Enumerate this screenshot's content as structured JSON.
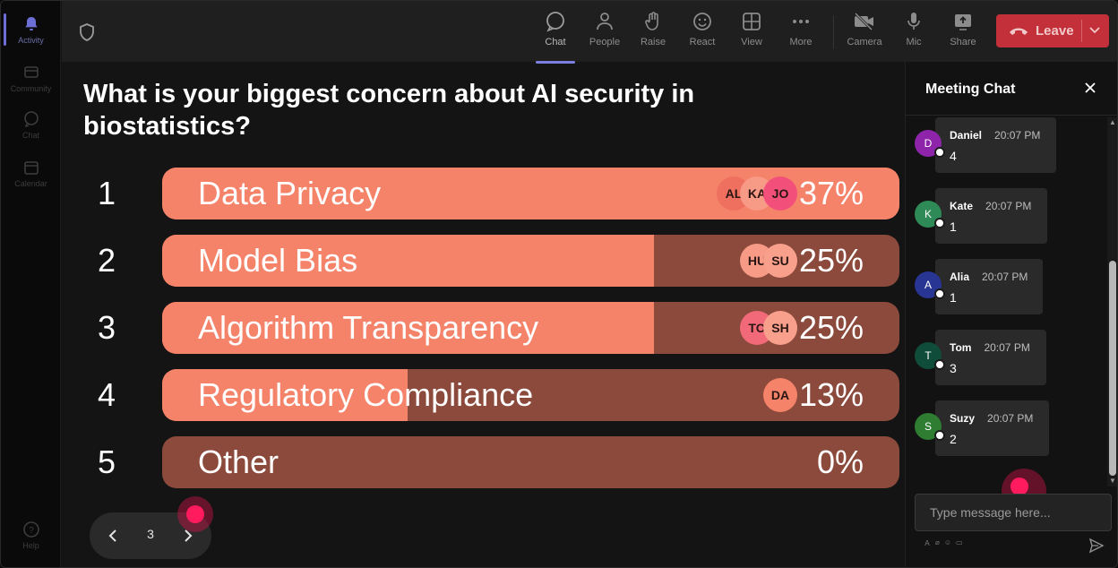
{
  "rail": {
    "items": [
      {
        "label": "Activity",
        "icon": "bell-icon"
      },
      {
        "label": "Community",
        "icon": "community-icon"
      },
      {
        "label": "Chat",
        "icon": "chat-icon"
      },
      {
        "label": "Calendar",
        "icon": "calendar-icon"
      }
    ],
    "help_label": "Help"
  },
  "toolbar": {
    "buttons": [
      {
        "label": "Chat",
        "icon": "chat-icon"
      },
      {
        "label": "People",
        "icon": "people-icon"
      },
      {
        "label": "Raise",
        "icon": "raise-hand-icon"
      },
      {
        "label": "React",
        "icon": "react-icon"
      },
      {
        "label": "View",
        "icon": "view-icon"
      },
      {
        "label": "More",
        "icon": "more-icon"
      },
      {
        "label": "Camera",
        "icon": "camera-off-icon"
      },
      {
        "label": "Mic",
        "icon": "mic-icon"
      },
      {
        "label": "Share",
        "icon": "share-icon"
      }
    ],
    "leave_label": "Leave",
    "leave_color": "#c4303a"
  },
  "poll": {
    "question": "What is your biggest concern about AI security in biostatistics?",
    "accent": "#f5836a",
    "track": "#8b4a3c",
    "options": [
      {
        "num": "1",
        "label": "Data Privacy",
        "pct": "37%",
        "fill": 1.0,
        "avatars": [
          "AL",
          "KA",
          "JO"
        ]
      },
      {
        "num": "2",
        "label": "Model Bias",
        "pct": "25%",
        "fill": 0.667,
        "avatars": [
          "HU",
          "SU"
        ]
      },
      {
        "num": "3",
        "label": "Algorithm Transparency",
        "pct": "25%",
        "fill": 0.667,
        "avatars": [
          "TO",
          "SH"
        ]
      },
      {
        "num": "4",
        "label": "Regulatory Compliance",
        "pct": "13%",
        "fill": 0.333,
        "avatars": [
          "DA"
        ]
      },
      {
        "num": "5",
        "label": "Other",
        "pct": "0%",
        "fill": 0.0,
        "avatars": []
      }
    ]
  },
  "pager": {
    "page": "3"
  },
  "chat": {
    "title": "Meeting Chat",
    "messages": [
      {
        "initial": "D",
        "name": "Daniel",
        "time": "20:07 PM",
        "text": "4",
        "color": "#8e24aa"
      },
      {
        "initial": "K",
        "name": "Kate",
        "time": "20:07 PM",
        "text": "1",
        "color": "#2e8b57"
      },
      {
        "initial": "A",
        "name": "Alia",
        "time": "20:07 PM",
        "text": "1",
        "color": "#283593"
      },
      {
        "initial": "T",
        "name": "Tom",
        "time": "20:07 PM",
        "text": "3",
        "color": "#0f4d3a"
      },
      {
        "initial": "S",
        "name": "Suzy",
        "time": "20:07 PM",
        "text": "2",
        "color": "#2e7d32"
      }
    ],
    "input_placeholder": "Type message here..."
  }
}
